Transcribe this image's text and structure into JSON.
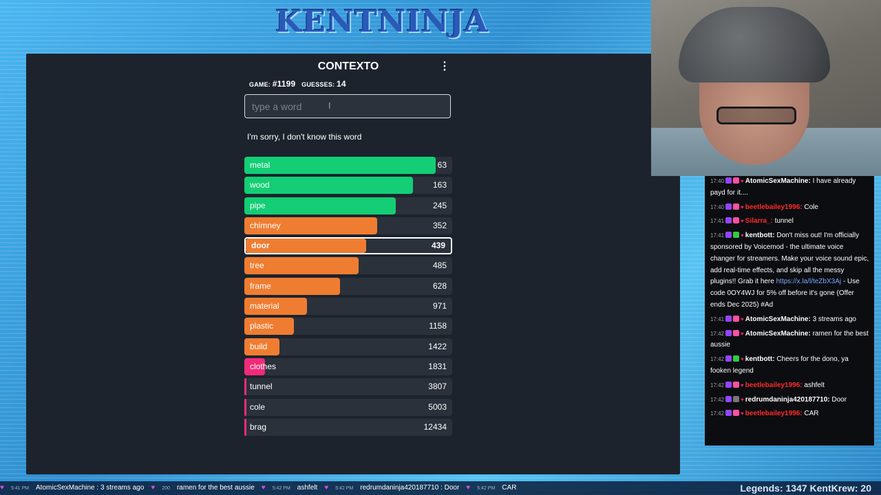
{
  "brand": "KENTNINJA",
  "game": {
    "title": "CONTEXTO",
    "game_label": "GAME:",
    "game_number": "#1199",
    "guesses_label": "GUESSES:",
    "guesses_count": "14",
    "input_placeholder": "type a word",
    "message": "I'm sorry, I don't know this word",
    "guesses": [
      {
        "word": "metal",
        "rank": "63",
        "fill": 0.92,
        "color": "#13ce74",
        "current": false
      },
      {
        "word": "wood",
        "rank": "163",
        "fill": 0.81,
        "color": "#13ce74",
        "current": false
      },
      {
        "word": "pipe",
        "rank": "245",
        "fill": 0.73,
        "color": "#13ce74",
        "current": false
      },
      {
        "word": "chimney",
        "rank": "352",
        "fill": 0.64,
        "color": "#ef7d31",
        "current": false
      },
      {
        "word": "door",
        "rank": "439",
        "fill": 0.58,
        "color": "#ef7d31",
        "current": true
      },
      {
        "word": "tree",
        "rank": "485",
        "fill": 0.55,
        "color": "#ef7d31",
        "current": false
      },
      {
        "word": "frame",
        "rank": "628",
        "fill": 0.46,
        "color": "#ef7d31",
        "current": false
      },
      {
        "word": "material",
        "rank": "971",
        "fill": 0.3,
        "color": "#ef7d31",
        "current": false
      },
      {
        "word": "plastic",
        "rank": "1158",
        "fill": 0.24,
        "color": "#ef7d31",
        "current": false
      },
      {
        "word": "build",
        "rank": "1422",
        "fill": 0.17,
        "color": "#ef7d31",
        "current": false
      },
      {
        "word": "clothes",
        "rank": "1831",
        "fill": 0.1,
        "color": "#f02b7a",
        "current": false
      },
      {
        "word": "tunnel",
        "rank": "3807",
        "fill": 0.01,
        "color": "#f02b7a",
        "current": false
      },
      {
        "word": "cole",
        "rank": "5003",
        "fill": 0.01,
        "color": "#f02b7a",
        "current": false
      },
      {
        "word": "brag",
        "rank": "12434",
        "fill": 0.01,
        "color": "#f02b7a",
        "current": false
      }
    ]
  },
  "chat": [
    {
      "time": "17:40",
      "badges": [
        "purple",
        "pink"
      ],
      "user": "AtomicSexMachine:",
      "user_color": "#ffffff",
      "text": " I have already payd for it...."
    },
    {
      "time": "17:40",
      "badges": [
        "purple",
        "pink"
      ],
      "user": "beetlebailey1996:",
      "user_color": "#ff2b2b",
      "text": " Cole"
    },
    {
      "time": "17:41",
      "badges": [
        "purple",
        "pink"
      ],
      "user": "Silarra_:",
      "user_color": "#ff2b2b",
      "text": " tunnel"
    },
    {
      "time": "17:41",
      "badges": [
        "purple",
        "green"
      ],
      "user": "kentbott:",
      "user_color": "#ffffff",
      "text": " Don't miss out! I'm officially sponsored by Voicemod - the ultimate voice changer for streamers. Make your voice sound epic, add real-time effects, and skip all the messy plugins!! Grab it here ",
      "link": "https://x.la/l/teZbX3Aj",
      "tail": " - Use code 0OY4WJ for 5% off before it's gone (Offer ends Dec 2025) #Ad"
    },
    {
      "time": "17:41",
      "badges": [
        "purple",
        "pink"
      ],
      "user": "AtomicSexMachine:",
      "user_color": "#ffffff",
      "text": " 3 streams ago"
    },
    {
      "time": "17:42",
      "badges": [
        "purple",
        "pink"
      ],
      "user": "AtomicSexMachine:",
      "user_color": "#ffffff",
      "text": " ramen for the best aussie"
    },
    {
      "time": "17:42",
      "badges": [
        "purple",
        "green"
      ],
      "user": "kentbott:",
      "user_color": "#ffffff",
      "text": " Cheers for the dono, ya fooken legend"
    },
    {
      "time": "17:42",
      "badges": [
        "purple",
        "pink"
      ],
      "user": "beetlebailey1996:",
      "user_color": "#ff2b2b",
      "text": " ashfelt"
    },
    {
      "time": "17:42",
      "badges": [
        "purple",
        "gray"
      ],
      "user": "redrumdaninja420187710:",
      "user_color": "#ffffff",
      "text": " Door"
    },
    {
      "time": "17:42",
      "badges": [
        "purple",
        "pink"
      ],
      "user": "beetlebailey1996:",
      "user_color": "#ff2b2b",
      "text": " CAR"
    }
  ],
  "ticker": {
    "items": [
      {
        "time": "5:41 PM",
        "text": "AtomicSexMachine : 3 streams ago"
      },
      {
        "time": "200",
        "text": "ramen for the best aussie"
      },
      {
        "time": "5:42 PM",
        "text": "ashfelt"
      },
      {
        "time": "5:42 PM",
        "text": "redrumdaninja420187710 : Door"
      },
      {
        "time": "5:42 PM",
        "text": "CAR"
      }
    ],
    "legends": "Legends: 1347 KentKrew: 20"
  }
}
